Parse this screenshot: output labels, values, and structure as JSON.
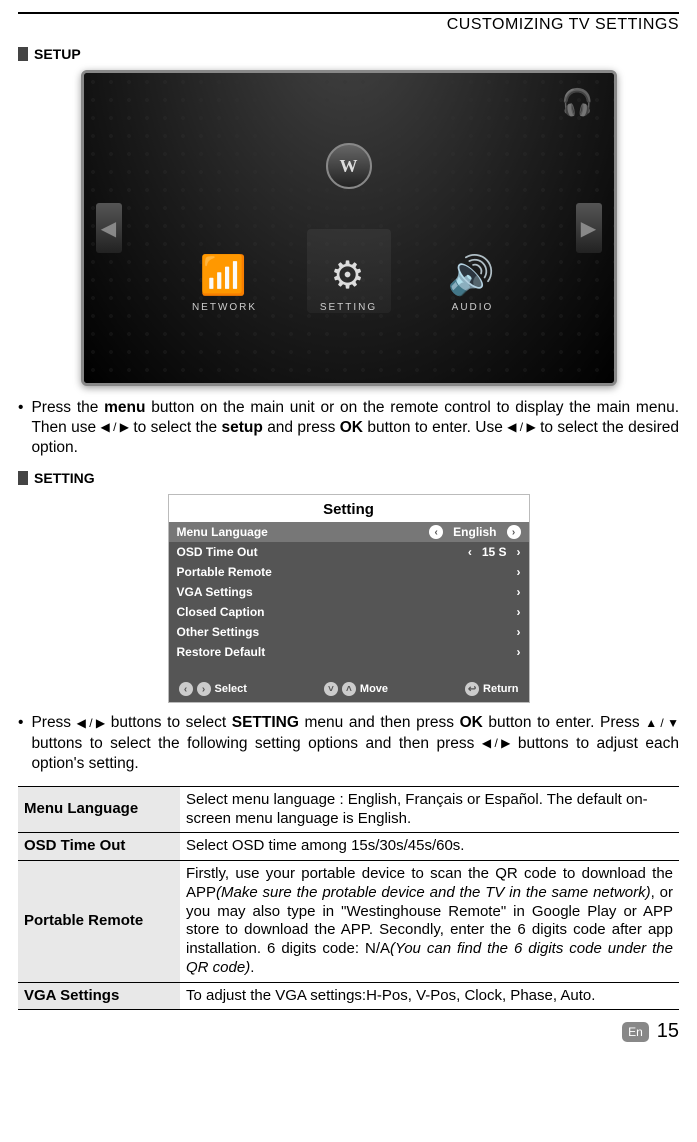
{
  "header": {
    "title": "CUSTOMIZING TV SETTINGS"
  },
  "setup": {
    "label": "SETUP"
  },
  "tv": {
    "tiles": [
      {
        "icon": "📶",
        "label": "NETWORK"
      },
      {
        "icon": "⚙",
        "label": "SETTING"
      },
      {
        "icon": "🔊",
        "label": "AUDIO"
      }
    ],
    "logo": "W"
  },
  "para1": {
    "t1": "Press the ",
    "b1": "menu",
    "t2": " button on the main unit or on the remote control to display the main menu. Then use ",
    "arrows1": "◀ / ▶",
    "t3": " to select the ",
    "b2": "setup",
    "t4": " and press ",
    "b3": "OK",
    "t5": " button to enter. Use ",
    "arrows2": "◀ / ▶",
    "t6": " to select the desired option."
  },
  "setting_tag": {
    "label": "SETTING"
  },
  "setting_panel": {
    "title": "Setting",
    "rows": [
      {
        "label": "Menu Language",
        "value": "English",
        "active": true
      },
      {
        "label": "OSD Time Out",
        "value": "15 S"
      },
      {
        "label": "Portable Remote"
      },
      {
        "label": "VGA Settings"
      },
      {
        "label": "Closed Caption"
      },
      {
        "label": "Other Settings"
      },
      {
        "label": "Restore Default"
      }
    ],
    "footer": {
      "select": "Select",
      "move": "Move",
      "return": "Return"
    }
  },
  "para2": {
    "t1": "Press ",
    "arrows1": "◀ / ▶",
    "t2": " buttons to select ",
    "b1": "SETTING",
    "t3": " menu and then press ",
    "b2": "OK",
    "t4": " button to enter. Press ",
    "arrows2": "▲ / ▼",
    "t5": " buttons to select the following setting options and then press ",
    "arrows3": "◀ / ▶",
    "t6": " buttons to adjust each option's setting."
  },
  "table": {
    "r1": {
      "k": "Menu Language",
      "v": "Select menu language : English, Français or Español. The default on-screen menu language is English."
    },
    "r2": {
      "k": "OSD Time Out",
      "v": "Select OSD time among 15s/30s/45s/60s."
    },
    "r3": {
      "k": "Portable Remote",
      "p1": "Firstly, use your portable device to scan the QR code to download the APP",
      "i1": "(Make sure the protable device and the TV in the same network)",
      "p2": ", or you may also type in \"Westinghouse Remote\" in Google Play or APP store to download the APP. Secondly, enter the 6 digits code after app installation. 6 digits code: N/A",
      "i2": "(You can find the 6 digits code under the QR code)",
      "p3": "."
    },
    "r4": {
      "k": "VGA Settings",
      "v": "To adjust the VGA settings:H-Pos, V-Pos, Clock, Phase, Auto."
    }
  },
  "footer": {
    "badge": "En",
    "page": "15"
  }
}
